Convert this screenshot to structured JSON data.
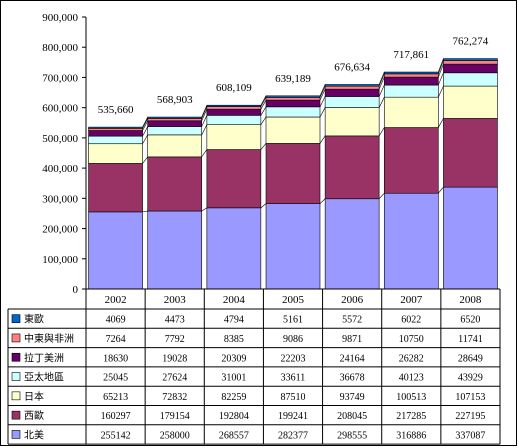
{
  "chart_data": {
    "type": "bar",
    "stacked": true,
    "title": "",
    "xlabel": "",
    "ylabel": "",
    "ylim": [
      0,
      900000
    ],
    "yticks": [
      "0",
      "100,000",
      "200,000",
      "300,000",
      "400,000",
      "500,000",
      "600,000",
      "700,000",
      "800,000",
      "900,000"
    ],
    "grid": false,
    "legend": "data-table-left",
    "categories": [
      "2002",
      "2003",
      "2004",
      "2005",
      "2006",
      "2007",
      "2008"
    ],
    "totals": [
      "535,660",
      "568,903",
      "608,109",
      "639,189",
      "676,634",
      "717,861",
      "762,274"
    ],
    "series": [
      {
        "name": "北美",
        "color": "#9999ff",
        "values": [
          255142,
          258000,
          268557,
          282377,
          298555,
          316886,
          337087
        ]
      },
      {
        "name": "西歐",
        "color": "#993366",
        "values": [
          160297,
          179154,
          192804,
          199241,
          208045,
          217285,
          227195
        ]
      },
      {
        "name": "日本",
        "color": "#ffffcc",
        "values": [
          65213,
          72832,
          82259,
          87510,
          93749,
          100513,
          107153
        ]
      },
      {
        "name": "亞太地區",
        "color": "#ccffff",
        "values": [
          25045,
          27624,
          31001,
          33611,
          36678,
          40123,
          43929
        ]
      },
      {
        "name": "拉丁美洲",
        "color": "#660066",
        "values": [
          18630,
          19028,
          20309,
          22203,
          24164,
          26282,
          28649
        ]
      },
      {
        "name": "中東與非洲",
        "color": "#ff8080",
        "values": [
          7264,
          7792,
          8385,
          9086,
          9871,
          10750,
          11741
        ]
      },
      {
        "name": "東歐",
        "color": "#0066cc",
        "values": [
          4069,
          4473,
          4794,
          5161,
          5572,
          6022,
          6520
        ]
      }
    ]
  }
}
